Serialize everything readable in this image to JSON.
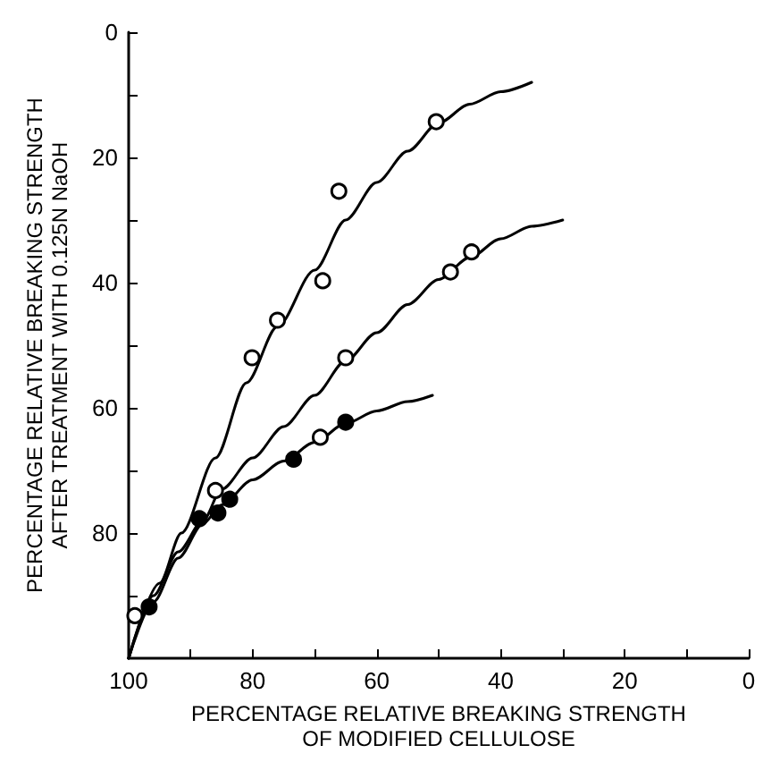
{
  "chart_data": {
    "type": "scatter",
    "xlabel": "PERCENTAGE RELATIVE BREAKING STRENGTH\nOF MODIFIED CELLULOSE",
    "ylabel": "PERCENTAGE RELATIVE BREAKING STRENGTH\nAFTER TREATMENT WITH 0.125N NaOH",
    "xlim": [
      100,
      0
    ],
    "ylim": [
      100,
      0
    ],
    "xticks": [
      100,
      {
        "value": 90,
        "label": null
      },
      80,
      {
        "value": 70,
        "label": null
      },
      60,
      {
        "value": 50,
        "label": null
      },
      40,
      {
        "value": 30,
        "label": null
      },
      20,
      {
        "value": 10,
        "label": null
      },
      0
    ],
    "yticks": [
      0,
      {
        "value": 10,
        "label": null
      },
      20,
      {
        "value": 30,
        "label": null
      },
      40,
      {
        "value": 50,
        "label": null
      },
      60,
      {
        "value": 70,
        "label": null
      },
      80,
      {
        "value": 90,
        "label": null
      }
    ],
    "series": [
      {
        "type": "line",
        "color": "#000000",
        "marker": "none",
        "line_style": "solid",
        "x": [
          100,
          95,
          91.5,
          86,
          81,
          76,
          70,
          65,
          60,
          55,
          50,
          45,
          40,
          35
        ],
        "values": [
          100,
          88,
          80,
          68,
          56,
          47,
          38,
          30,
          24,
          19,
          14.5,
          11.5,
          9.5,
          8
        ]
      },
      {
        "type": "line",
        "color": "#000000",
        "marker": "none",
        "line_style": "solid",
        "x": [
          100,
          96,
          92,
          88,
          85,
          80,
          75,
          70,
          65,
          60,
          55,
          50,
          45,
          40,
          35,
          30
        ],
        "values": [
          100,
          90,
          83,
          78,
          73,
          68,
          63,
          58,
          52.5,
          48,
          43.5,
          39.5,
          36,
          33,
          31,
          30
        ]
      },
      {
        "type": "line",
        "color": "#000000",
        "marker": "none",
        "line_style": "solid",
        "x": [
          100,
          96,
          92,
          88,
          85,
          80,
          75,
          70,
          65,
          60,
          55,
          51
        ],
        "values": [
          100,
          91,
          84,
          78.5,
          75.5,
          71.5,
          68.5,
          65.5,
          62.5,
          60.5,
          59,
          58
        ]
      },
      {
        "color": "#ffffff",
        "marker": "circle",
        "x": [
          50.4,
          66.1,
          68.7,
          76,
          80.1,
          44.7,
          48.1,
          65,
          86,
          69.1,
          99
        ],
        "values": [
          14.3,
          25.4,
          39.7,
          46,
          52,
          35.1,
          38.3,
          52,
          73.2,
          64.7,
          93.2
        ]
      },
      {
        "color": "#000000",
        "marker": "circle",
        "x": [
          65,
          73.4,
          83.7,
          85.6,
          88.6,
          96.7
        ],
        "values": [
          62.3,
          68.2,
          74.6,
          76.8,
          77.7,
          91.8
        ]
      }
    ]
  }
}
